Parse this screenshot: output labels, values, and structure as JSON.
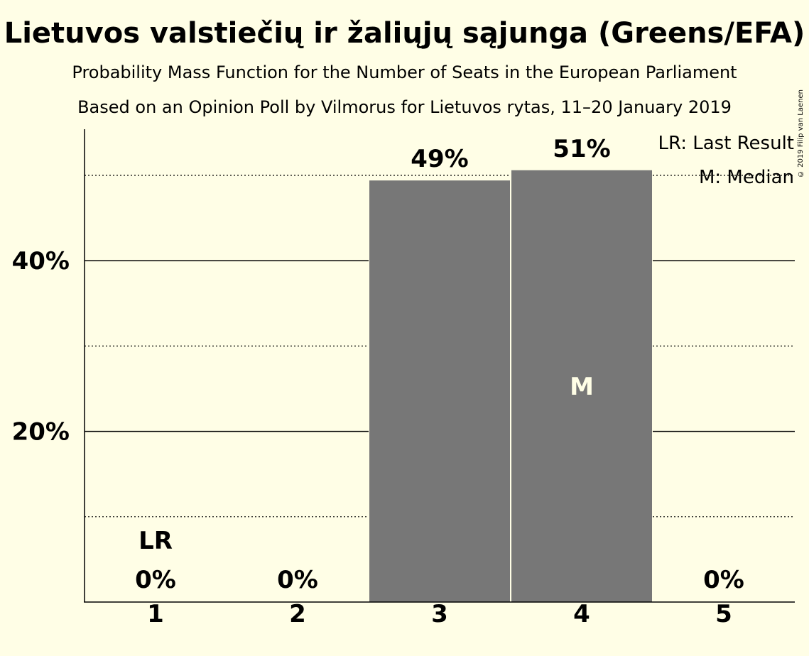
{
  "header": {
    "title": "Lietuvos valstiečių ir žaliųjų sąjunga (Greens/EFA)",
    "subtitle": "Probability Mass Function for the Number of Seats in the European Parliament",
    "subtitle2": "Based on an Opinion Poll by Vilmorus for Lietuvos rytas, 11–20 January 2019",
    "copyright": "© 2019 Filip van Laenen"
  },
  "legend": {
    "last_result": "LR: Last Result",
    "median": "M: Median",
    "placement": "top-right"
  },
  "colors": {
    "background": "#FFFEE6",
    "bar": "#777777",
    "median_marker_text": "#FFFEE6"
  },
  "chart_data": {
    "type": "bar",
    "categories": [
      "1",
      "2",
      "3",
      "4",
      "5"
    ],
    "values": [
      0,
      0,
      49.4,
      50.6,
      0
    ],
    "data_labels": [
      "0%",
      "0%",
      "49%",
      "51%",
      "0%"
    ],
    "ylim": [
      0,
      55
    ],
    "yticks": [
      20,
      40
    ],
    "ytick_labels": [
      "20%",
      "40%"
    ],
    "minor_gridlines": [
      10,
      30,
      50
    ],
    "last_result_category": "1",
    "last_result_label": "LR",
    "median_category": "4",
    "median_label": "M",
    "grid": true
  }
}
